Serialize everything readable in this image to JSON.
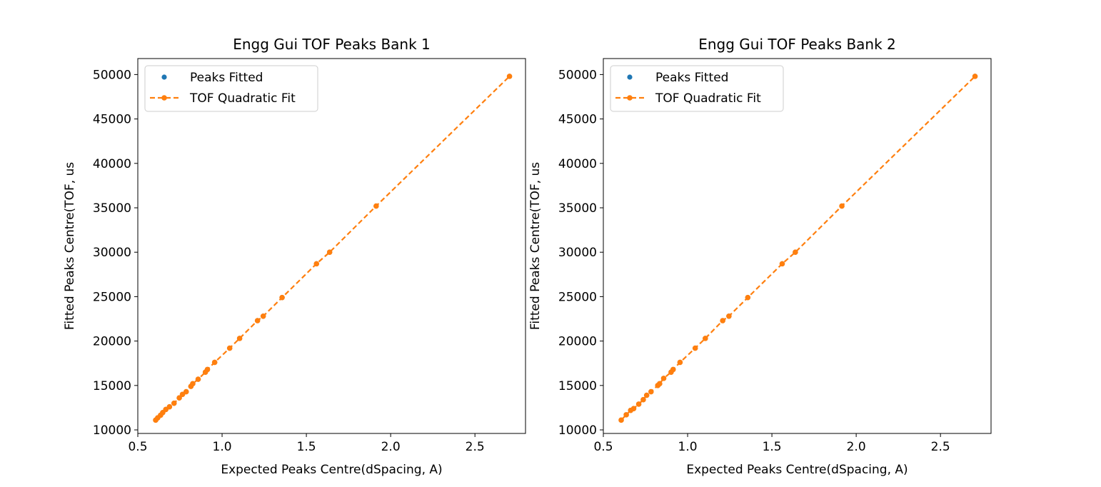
{
  "chart_data": [
    {
      "type": "scatter",
      "title": "Engg Gui TOF Peaks Bank 1",
      "xlabel": "Expected Peaks Centre(dSpacing, A)",
      "ylabel": "Fitted Peaks Centre(TOF, us",
      "xlim": [
        0.5,
        2.8
      ],
      "ylim": [
        9600,
        51800
      ],
      "xticks": [
        "0.5",
        "1.0",
        "1.5",
        "2.0",
        "2.5"
      ],
      "xtick_values": [
        0.5,
        1.0,
        1.5,
        2.0,
        2.5
      ],
      "yticks": [
        "10000",
        "15000",
        "20000",
        "25000",
        "30000",
        "35000",
        "40000",
        "45000",
        "50000"
      ],
      "ytick_values": [
        10000,
        15000,
        20000,
        25000,
        30000,
        35000,
        40000,
        45000,
        50000
      ],
      "legend_position": "top-left",
      "series": [
        {
          "name": "Peaks Fitted",
          "color": "#1f77b4",
          "style": "markers",
          "x": [
            0.606,
            0.618,
            0.635,
            0.648,
            0.666,
            0.688,
            0.715,
            0.746,
            0.765,
            0.787,
            0.815,
            0.826,
            0.858,
            0.901,
            0.913,
            0.956,
            1.045,
            1.104,
            1.21,
            1.244,
            1.356,
            1.56,
            1.638,
            1.914,
            2.705
          ],
          "y": [
            11100,
            11350,
            11650,
            11950,
            12300,
            12600,
            13000,
            13600,
            14000,
            14300,
            14900,
            15200,
            15700,
            16500,
            16800,
            17600,
            19200,
            20300,
            22300,
            22800,
            24900,
            28700,
            30000,
            35200,
            49800
          ]
        },
        {
          "name": "TOF Quadratic Fit",
          "color": "#ff7f0e",
          "style": "dashed-line-markers",
          "x": [
            0.606,
            0.618,
            0.635,
            0.648,
            0.666,
            0.688,
            0.715,
            0.746,
            0.765,
            0.787,
            0.815,
            0.826,
            0.858,
            0.901,
            0.913,
            0.956,
            1.045,
            1.104,
            1.21,
            1.244,
            1.356,
            1.56,
            1.638,
            1.914,
            2.705
          ],
          "y": [
            11100,
            11350,
            11650,
            11950,
            12300,
            12600,
            13000,
            13600,
            14000,
            14300,
            14900,
            15200,
            15700,
            16500,
            16800,
            17600,
            19200,
            20300,
            22300,
            22800,
            24900,
            28700,
            30000,
            35200,
            49800
          ]
        }
      ]
    },
    {
      "type": "scatter",
      "title": "Engg Gui TOF Peaks Bank 2",
      "xlabel": "Expected Peaks Centre(dSpacing, A)",
      "ylabel": "Fitted Peaks Centre(TOF, us",
      "xlim": [
        0.5,
        2.8
      ],
      "ylim": [
        9600,
        51800
      ],
      "xticks": [
        "0.5",
        "1.0",
        "1.5",
        "2.0",
        "2.5"
      ],
      "xtick_values": [
        0.5,
        1.0,
        1.5,
        2.0,
        2.5
      ],
      "yticks": [
        "10000",
        "15000",
        "20000",
        "25000",
        "30000",
        "35000",
        "40000",
        "45000",
        "50000"
      ],
      "ytick_values": [
        10000,
        15000,
        20000,
        25000,
        30000,
        35000,
        40000,
        45000,
        50000
      ],
      "legend_position": "top-left",
      "series": [
        {
          "name": "Peaks Fitted",
          "color": "#1f77b4",
          "style": "markers",
          "x": [
            0.606,
            0.636,
            0.662,
            0.68,
            0.71,
            0.737,
            0.757,
            0.783,
            0.823,
            0.834,
            0.858,
            0.902,
            0.914,
            0.955,
            1.045,
            1.105,
            1.208,
            1.245,
            1.357,
            1.561,
            1.639,
            1.915,
            2.705
          ],
          "y": [
            11100,
            11700,
            12200,
            12400,
            12900,
            13400,
            13900,
            14300,
            15000,
            15200,
            15800,
            16500,
            16800,
            17600,
            19200,
            20300,
            22300,
            22800,
            24900,
            28700,
            30000,
            35200,
            49800
          ]
        },
        {
          "name": "TOF Quadratic Fit",
          "color": "#ff7f0e",
          "style": "dashed-line-markers",
          "x": [
            0.606,
            0.636,
            0.662,
            0.68,
            0.71,
            0.737,
            0.757,
            0.783,
            0.823,
            0.834,
            0.858,
            0.902,
            0.914,
            0.955,
            1.045,
            1.105,
            1.208,
            1.245,
            1.357,
            1.561,
            1.639,
            1.915,
            2.705
          ],
          "y": [
            11100,
            11700,
            12200,
            12400,
            12900,
            13400,
            13900,
            14300,
            15000,
            15200,
            15800,
            16500,
            16800,
            17600,
            19200,
            20300,
            22300,
            22800,
            24900,
            28700,
            30000,
            35200,
            49800
          ]
        }
      ]
    }
  ]
}
